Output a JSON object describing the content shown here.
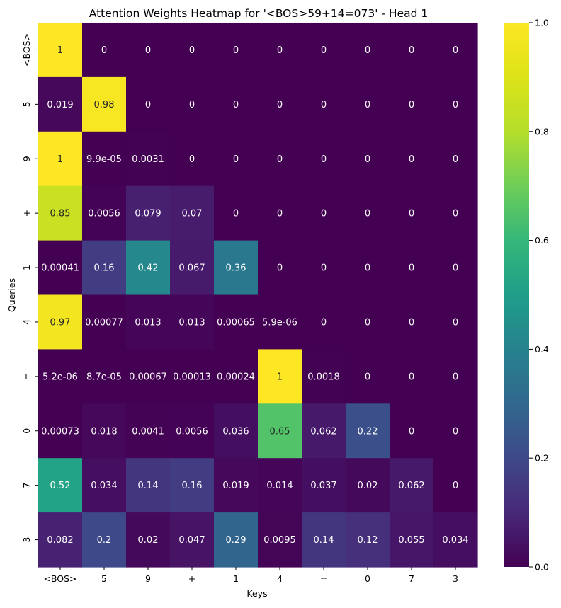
{
  "chart_data": {
    "type": "heatmap",
    "title": "Attention Weights Heatmap for '<BOS>59+14=073' - Head 1",
    "xlabel": "Keys",
    "ylabel": "Queries",
    "x_categories": [
      "<BOS>",
      "5",
      "9",
      "+",
      "1",
      "4",
      "=",
      "0",
      "7",
      "3"
    ],
    "y_categories": [
      "<BOS>",
      "5",
      "9",
      "+",
      "1",
      "4",
      "=",
      "0",
      "7",
      "3"
    ],
    "values": [
      [
        1,
        0,
        0,
        0,
        0,
        0,
        0,
        0,
        0,
        0
      ],
      [
        0.019,
        0.98,
        0,
        0,
        0,
        0,
        0,
        0,
        0,
        0
      ],
      [
        1,
        9.9e-05,
        0.0031,
        0,
        0,
        0,
        0,
        0,
        0,
        0
      ],
      [
        0.85,
        0.0056,
        0.079,
        0.07,
        0,
        0,
        0,
        0,
        0,
        0
      ],
      [
        0.00041,
        0.16,
        0.42,
        0.067,
        0.36,
        0,
        0,
        0,
        0,
        0
      ],
      [
        0.97,
        0.00077,
        0.013,
        0.013,
        0.00065,
        5.9e-06,
        0,
        0,
        0,
        0
      ],
      [
        5.2e-06,
        8.7e-05,
        0.00067,
        0.00013,
        0.00024,
        1,
        0.0018,
        0,
        0,
        0
      ],
      [
        0.00073,
        0.018,
        0.0041,
        0.0056,
        0.036,
        0.65,
        0.062,
        0.22,
        0,
        0
      ],
      [
        0.52,
        0.034,
        0.14,
        0.16,
        0.019,
        0.014,
        0.037,
        0.02,
        0.062,
        0
      ],
      [
        0.082,
        0.2,
        0.02,
        0.047,
        0.29,
        0.0095,
        0.14,
        0.12,
        0.055,
        0.034
      ]
    ],
    "labels": [
      [
        "1",
        "0",
        "0",
        "0",
        "0",
        "0",
        "0",
        "0",
        "0",
        "0"
      ],
      [
        "0.019",
        "0.98",
        "0",
        "0",
        "0",
        "0",
        "0",
        "0",
        "0",
        "0"
      ],
      [
        "1",
        "9.9e-05",
        "0.0031",
        "0",
        "0",
        "0",
        "0",
        "0",
        "0",
        "0"
      ],
      [
        "0.85",
        "0.0056",
        "0.079",
        "0.07",
        "0",
        "0",
        "0",
        "0",
        "0",
        "0"
      ],
      [
        "0.00041",
        "0.16",
        "0.42",
        "0.067",
        "0.36",
        "0",
        "0",
        "0",
        "0",
        "0"
      ],
      [
        "0.97",
        "0.00077",
        "0.013",
        "0.013",
        "0.00065",
        "5.9e-06",
        "0",
        "0",
        "0",
        "0"
      ],
      [
        "5.2e-06",
        "8.7e-05",
        "0.00067",
        "0.00013",
        "0.00024",
        "1",
        "0.0018",
        "0",
        "0",
        "0"
      ],
      [
        "0.00073",
        "0.018",
        "0.0041",
        "0.0056",
        "0.036",
        "0.65",
        "0.062",
        "0.22",
        "0",
        "0"
      ],
      [
        "0.52",
        "0.034",
        "0.14",
        "0.16",
        "0.019",
        "0.014",
        "0.037",
        "0.02",
        "0.062",
        "0"
      ],
      [
        "0.082",
        "0.2",
        "0.02",
        "0.047",
        "0.29",
        "0.0095",
        "0.14",
        "0.12",
        "0.055",
        "0.034"
      ]
    ],
    "colormap": "viridis",
    "vmin": 0,
    "vmax": 1,
    "colorbar_ticks": [
      0.0,
      0.2,
      0.4,
      0.6,
      0.8,
      1.0
    ],
    "colorbar_tick_labels": [
      "0.0",
      "0.2",
      "0.4",
      "0.6",
      "0.8",
      "1.0"
    ],
    "grid": false,
    "legend": "colorbar-right"
  }
}
